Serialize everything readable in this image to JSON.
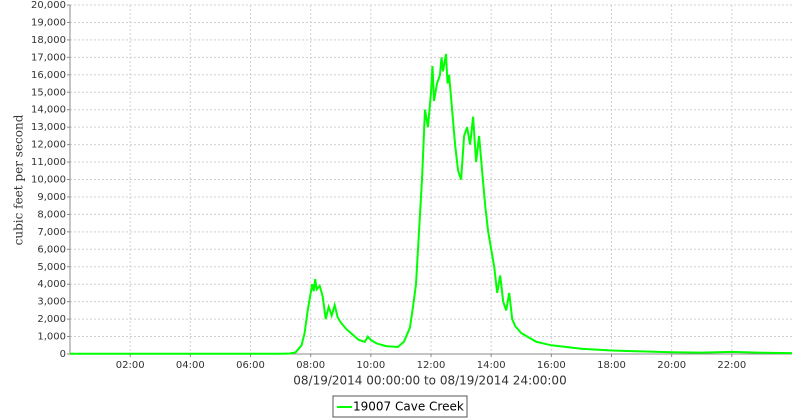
{
  "chart_data": {
    "type": "line",
    "xlabel": "08/19/2014 00:00:00 to 08/19/2014 24:00:00",
    "ylabel": "cubic feet per second",
    "x": [
      0,
      1,
      2,
      3,
      4,
      5,
      6,
      7,
      7.3,
      7.5,
      7.7,
      7.8,
      7.9,
      8.0,
      8.05,
      8.1,
      8.15,
      8.2,
      8.3,
      8.4,
      8.5,
      8.6,
      8.7,
      8.8,
      8.9,
      9.0,
      9.2,
      9.4,
      9.6,
      9.8,
      9.9,
      10.0,
      10.2,
      10.5,
      10.9,
      11.1,
      11.3,
      11.4,
      11.5,
      11.6,
      11.7,
      11.75,
      11.8,
      11.9,
      12.0,
      12.05,
      12.1,
      12.2,
      12.3,
      12.35,
      12.4,
      12.5,
      12.55,
      12.6,
      12.7,
      12.8,
      12.9,
      13.0,
      13.1,
      13.2,
      13.3,
      13.4,
      13.5,
      13.6,
      13.7,
      13.8,
      13.9,
      14.0,
      14.1,
      14.2,
      14.3,
      14.4,
      14.5,
      14.6,
      14.7,
      14.8,
      15.0,
      15.2,
      15.5,
      16.0,
      16.5,
      17.0,
      18.0,
      19.0,
      20.0,
      21.0,
      22.0,
      23.0,
      24.0
    ],
    "series": [
      {
        "name": "19007 Cave Creek",
        "color": "#00ff00",
        "values": [
          10,
          10,
          10,
          10,
          10,
          10,
          10,
          10,
          30,
          100,
          500,
          1200,
          2500,
          3500,
          4000,
          3600,
          4300,
          3700,
          3900,
          3300,
          2000,
          2700,
          2200,
          2800,
          2100,
          1800,
          1400,
          1100,
          800,
          700,
          1000,
          800,
          600,
          450,
          400,
          700,
          1500,
          2700,
          4000,
          7000,
          10000,
          12000,
          14000,
          13000,
          15000,
          16500,
          14500,
          15500,
          16000,
          17000,
          16200,
          17200,
          15500,
          16000,
          14000,
          12000,
          10500,
          10000,
          12500,
          13000,
          12000,
          13600,
          11000,
          12500,
          10500,
          8500,
          7000,
          6000,
          5000,
          3500,
          4500,
          3000,
          2500,
          3500,
          2000,
          1600,
          1200,
          1000,
          700,
          500,
          400,
          300,
          200,
          150,
          100,
          80,
          120,
          70,
          50
        ]
      }
    ],
    "xlim": [
      0,
      24
    ],
    "xticks": [
      {
        "value": 2,
        "label": "02:00"
      },
      {
        "value": 4,
        "label": "04:00"
      },
      {
        "value": 6,
        "label": "06:00"
      },
      {
        "value": 8,
        "label": "08:00"
      },
      {
        "value": 10,
        "label": "10:00"
      },
      {
        "value": 12,
        "label": "12:00"
      },
      {
        "value": 14,
        "label": "14:00"
      },
      {
        "value": 16,
        "label": "16:00"
      },
      {
        "value": 18,
        "label": "18:00"
      },
      {
        "value": 20,
        "label": "20:00"
      },
      {
        "value": 22,
        "label": "22:00"
      }
    ],
    "ylim": [
      0,
      20000
    ],
    "yticks": [
      0,
      {
        "value": 1000,
        "label": "1,000"
      },
      {
        "value": 2000,
        "label": "2,000"
      },
      {
        "value": 3000,
        "label": "3,000"
      },
      {
        "value": 4000,
        "label": "4,000"
      },
      {
        "value": 5000,
        "label": "5,000"
      },
      {
        "value": 6000,
        "label": "6,000"
      },
      {
        "value": 7000,
        "label": "7,000"
      },
      {
        "value": 8000,
        "label": "8,000"
      },
      {
        "value": 9000,
        "label": "9,000"
      },
      {
        "value": 10000,
        "label": "10,000"
      },
      {
        "value": 11000,
        "label": "11,000"
      },
      {
        "value": 12000,
        "label": "12,000"
      },
      {
        "value": 13000,
        "label": "13,000"
      },
      {
        "value": 14000,
        "label": "14,000"
      },
      {
        "value": 15000,
        "label": "15,000"
      },
      {
        "value": 16000,
        "label": "16,000"
      },
      {
        "value": 17000,
        "label": "17,000"
      },
      {
        "value": 18000,
        "label": "18,000"
      },
      {
        "value": 19000,
        "label": "19,000"
      },
      {
        "value": 20000,
        "label": "20,000"
      }
    ],
    "grid": true
  }
}
